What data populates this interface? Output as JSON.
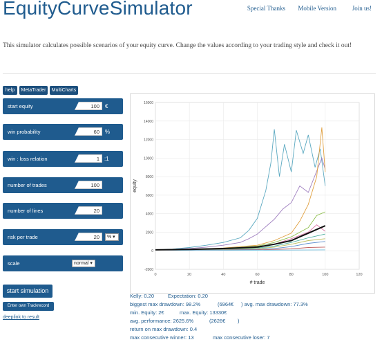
{
  "app_title": "EquityCurveSimulator",
  "nav": {
    "thanks": "Special Thanks",
    "mobile": "Mobile Version",
    "join": "Join us!"
  },
  "intro": "This simulator calculates possible scenarios of your equity curve. Change the values according to your trading style and check it out!",
  "tabs": [
    "help",
    "MetaTrader",
    "MultiCharts"
  ],
  "fields": {
    "start_equity": {
      "label": "start equity",
      "value": "100",
      "unit": "€"
    },
    "win_probability": {
      "label": "win probability",
      "value": "60",
      "unit": "%"
    },
    "win_loss": {
      "label": "win : loss relation",
      "value": "1",
      "unit": ":1"
    },
    "num_trades": {
      "label": "number of trades",
      "value": "100"
    },
    "num_lines": {
      "label": "number of lines",
      "value": "20"
    },
    "risk": {
      "label": "risk per trade",
      "value": "20",
      "unit_select": "% ▾"
    },
    "scale": {
      "label": "scale",
      "select": "normal ▾"
    }
  },
  "buttons": {
    "start": "start simulation",
    "track": "Enter own Trackrecord",
    "deeplink": "deeplink to result"
  },
  "chart_data": {
    "type": "line",
    "xlabel": "# trade",
    "ylabel": "equity",
    "xlim": [
      0,
      120
    ],
    "ylim": [
      -2000,
      16000
    ],
    "x_ticks": [
      "0",
      "20",
      "40",
      "60",
      "80",
      "100",
      "120"
    ],
    "y_ticks": [
      "-2000",
      "0",
      "2000",
      "4000",
      "6000",
      "8000",
      "10000",
      "12000",
      "14000",
      "16000"
    ],
    "grid": true,
    "colors": [
      "#5aa8c0",
      "#a080c0",
      "#e0a040",
      "#8fbf4f",
      "#d870a0",
      "#50b0a0",
      "#c0c060",
      "#6090d0",
      "#c06060",
      "#70c0e0",
      "#b0a050",
      "#9060b0",
      "#60a060",
      "#e08070",
      "#4080a0",
      "#c090d0",
      "#a0c070",
      "#d0b080",
      "#7070c0"
    ],
    "mean_color": "#111111",
    "series": [
      {
        "values": [
          [
            0,
            100
          ],
          [
            10,
            180
          ],
          [
            20,
            350
          ],
          [
            30,
            600
          ],
          [
            40,
            900
          ],
          [
            50,
            1400
          ],
          [
            55,
            2200
          ],
          [
            60,
            3500
          ],
          [
            65,
            6500
          ],
          [
            68,
            9500
          ],
          [
            70,
            13100
          ],
          [
            73,
            8000
          ],
          [
            76,
            11500
          ],
          [
            80,
            8500
          ],
          [
            83,
            13000
          ],
          [
            87,
            10500
          ],
          [
            90,
            12500
          ],
          [
            94,
            9000
          ],
          [
            97,
            11000
          ],
          [
            100,
            7000
          ]
        ]
      },
      {
        "values": [
          [
            0,
            100
          ],
          [
            10,
            150
          ],
          [
            20,
            250
          ],
          [
            30,
            400
          ],
          [
            40,
            600
          ],
          [
            50,
            900
          ],
          [
            55,
            1300
          ],
          [
            60,
            1800
          ],
          [
            65,
            2600
          ],
          [
            70,
            3400
          ],
          [
            75,
            4500
          ],
          [
            80,
            5200
          ],
          [
            85,
            7000
          ],
          [
            90,
            6300
          ],
          [
            95,
            8600
          ],
          [
            98,
            10000
          ],
          [
            100,
            8800
          ]
        ]
      },
      {
        "values": [
          [
            0,
            100
          ],
          [
            20,
            130
          ],
          [
            40,
            300
          ],
          [
            60,
            600
          ],
          [
            70,
            1100
          ],
          [
            80,
            1900
          ],
          [
            85,
            3200
          ],
          [
            90,
            5000
          ],
          [
            95,
            8000
          ],
          [
            98,
            13300
          ],
          [
            100,
            8500
          ]
        ]
      },
      {
        "values": [
          [
            0,
            100
          ],
          [
            20,
            120
          ],
          [
            40,
            250
          ],
          [
            60,
            500
          ],
          [
            70,
            900
          ],
          [
            80,
            1500
          ],
          [
            90,
            2500
          ],
          [
            95,
            3800
          ],
          [
            100,
            4200
          ]
        ]
      },
      {
        "values": [
          [
            0,
            100
          ],
          [
            20,
            110
          ],
          [
            40,
            200
          ],
          [
            60,
            400
          ],
          [
            70,
            700
          ],
          [
            80,
            1300
          ],
          [
            90,
            2000
          ],
          [
            95,
            2800
          ],
          [
            100,
            2100
          ]
        ]
      },
      {
        "values": [
          [
            0,
            100
          ],
          [
            20,
            90
          ],
          [
            40,
            150
          ],
          [
            60,
            300
          ],
          [
            70,
            500
          ],
          [
            80,
            900
          ],
          [
            90,
            1400
          ],
          [
            100,
            1800
          ]
        ]
      },
      {
        "values": [
          [
            0,
            100
          ],
          [
            20,
            80
          ],
          [
            40,
            120
          ],
          [
            60,
            220
          ],
          [
            70,
            400
          ],
          [
            80,
            700
          ],
          [
            90,
            1100
          ],
          [
            100,
            1300
          ]
        ]
      },
      {
        "values": [
          [
            0,
            100
          ],
          [
            20,
            60
          ],
          [
            40,
            90
          ],
          [
            60,
            150
          ],
          [
            70,
            250
          ],
          [
            80,
            450
          ],
          [
            90,
            800
          ],
          [
            100,
            1000
          ]
        ]
      },
      {
        "values": [
          [
            0,
            100
          ],
          [
            20,
            50
          ],
          [
            40,
            70
          ],
          [
            60,
            100
          ],
          [
            80,
            200
          ],
          [
            90,
            350
          ],
          [
            100,
            400
          ]
        ]
      },
      {
        "values": [
          [
            0,
            100
          ],
          [
            20,
            40
          ],
          [
            40,
            50
          ],
          [
            60,
            60
          ],
          [
            80,
            80
          ],
          [
            100,
            100
          ]
        ]
      }
    ],
    "mean_series": {
      "values": [
        [
          0,
          100
        ],
        [
          20,
          140
        ],
        [
          40,
          240
        ],
        [
          60,
          400
        ],
        [
          70,
          700
        ],
        [
          80,
          1100
        ],
        [
          85,
          1500
        ],
        [
          90,
          1900
        ],
        [
          95,
          2300
        ],
        [
          100,
          2700
        ]
      ]
    }
  },
  "stats": {
    "kelly": "Kelly: 0.20",
    "expectation": "Expectation: 0.20",
    "biggest_dd": "biggest max drawdown: 98.2%",
    "biggest_dd_val": "(6964€",
    "avg_dd": ") avg. max drawdown: 77.3%",
    "min_equity": "min. Equity: 2€",
    "max_equity": "max. Equity: 13330€",
    "avg_perf": "avg. performance: 2625.6%",
    "avg_perf_val": "(2626€",
    "avg_perf_close": ")",
    "return_dd": "return on max drawdown: 0.4",
    "max_winner": "max consecutive winner: 13",
    "max_loser": "max consecutive loser: 7"
  }
}
